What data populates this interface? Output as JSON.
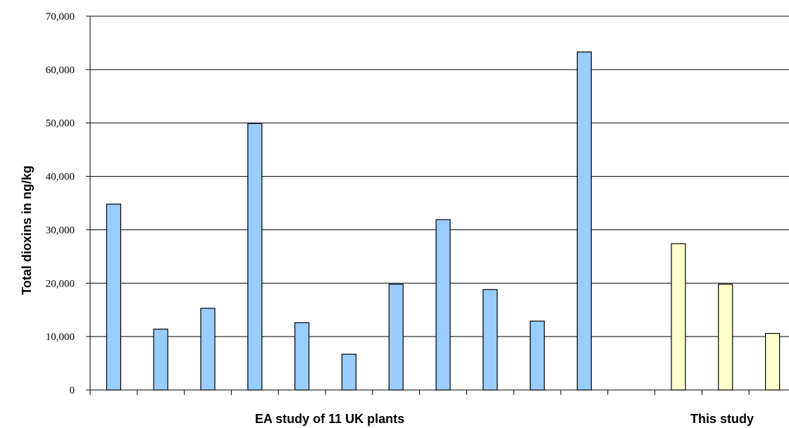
{
  "chart_data": {
    "type": "bar",
    "ylabel": "Total dioxins in ng/kg",
    "ylim": [
      0,
      70000
    ],
    "yticks": [
      "0",
      "10,000",
      "20,000",
      "30,000",
      "40,000",
      "50,000",
      "60,000",
      "70,000"
    ],
    "grid": true,
    "groups": [
      {
        "label": "EA study of 11 UK plants",
        "color": "#99ccff"
      },
      {
        "label": "This study",
        "color": "#ffffcc"
      }
    ],
    "series": [
      {
        "group": 0,
        "values": [
          34800,
          11400,
          15300,
          49900,
          12600,
          6700,
          19800,
          31900,
          18800,
          12900,
          63300
        ]
      },
      {
        "group": 1,
        "values": [
          27400,
          19800,
          10600
        ]
      }
    ]
  }
}
